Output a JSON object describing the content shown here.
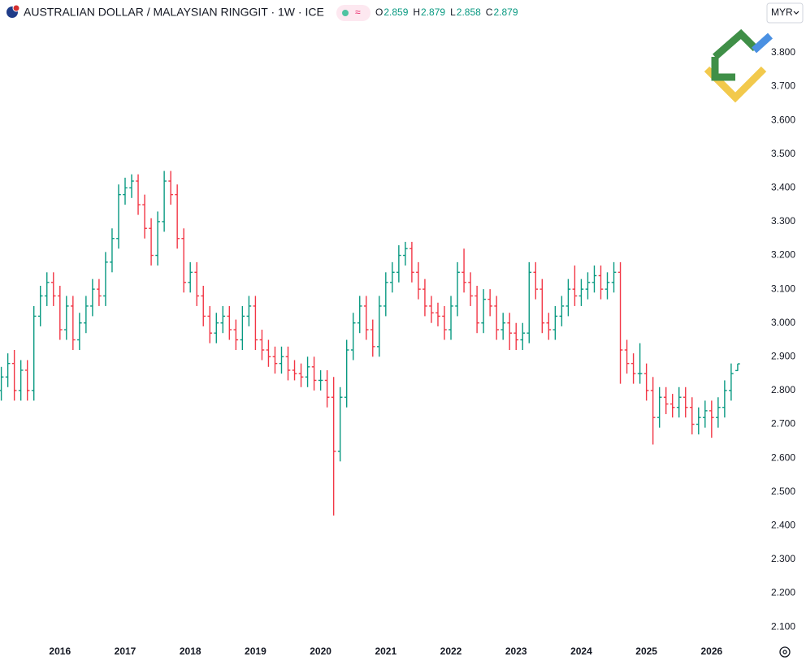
{
  "chart_data": {
    "type": "ohlc",
    "title": "AUSTRALIAN DOLLAR / MALAYSIAN RINGGIT · 1W · ICE",
    "currency": "MYR",
    "legend_labels": [
      "O",
      "H",
      "L",
      "C"
    ],
    "up_color": "#089981",
    "down_color": "#f23645",
    "xlim": [
      2015.08,
      2026.8
    ],
    "xticks": [
      2016,
      2017,
      2018,
      2019,
      2020,
      2021,
      2022,
      2023,
      2024,
      2025,
      2026
    ],
    "ylim": [
      2.057,
      3.884
    ],
    "yticks": [
      {
        "value": 2.1,
        "label": "2.100"
      },
      {
        "value": 2.2,
        "label": "2.200"
      },
      {
        "value": 2.3,
        "label": "2.300"
      },
      {
        "value": 2.4,
        "label": "2.400"
      },
      {
        "value": 2.5,
        "label": "2.500"
      },
      {
        "value": 2.6,
        "label": "2.600"
      },
      {
        "value": 2.7,
        "label": "2.700"
      },
      {
        "value": 2.8,
        "label": "2.800"
      },
      {
        "value": 2.9,
        "label": "2.900"
      },
      {
        "value": 3.0,
        "label": "3.000"
      },
      {
        "value": 3.1,
        "label": "3.100"
      },
      {
        "value": 3.2,
        "label": "3.200"
      },
      {
        "value": 3.3,
        "label": "3.300"
      },
      {
        "value": 3.4,
        "label": "3.400"
      },
      {
        "value": 3.5,
        "label": "3.500"
      },
      {
        "value": 3.6,
        "label": "3.600"
      },
      {
        "value": 3.7,
        "label": "3.700"
      },
      {
        "value": 3.8,
        "label": "3.800"
      }
    ],
    "x": [
      2015.1,
      2015.2,
      2015.3,
      2015.4,
      2015.5,
      2015.6,
      2015.7,
      2015.8,
      2015.9,
      2016.0,
      2016.1,
      2016.2,
      2016.3,
      2016.4,
      2016.5,
      2016.6,
      2016.7,
      2016.8,
      2016.9,
      2017.0,
      2017.1,
      2017.2,
      2017.3,
      2017.4,
      2017.5,
      2017.6,
      2017.7,
      2017.8,
      2017.9,
      2018.0,
      2018.1,
      2018.2,
      2018.3,
      2018.4,
      2018.5,
      2018.6,
      2018.7,
      2018.8,
      2018.9,
      2019.0,
      2019.1,
      2019.2,
      2019.3,
      2019.4,
      2019.5,
      2019.6,
      2019.7,
      2019.8,
      2019.9,
      2020.0,
      2020.1,
      2020.2,
      2020.3,
      2020.4,
      2020.5,
      2020.6,
      2020.7,
      2020.8,
      2020.9,
      2021.0,
      2021.1,
      2021.2,
      2021.3,
      2021.4,
      2021.5,
      2021.6,
      2021.7,
      2021.8,
      2021.9,
      2022.0,
      2022.1,
      2022.2,
      2022.3,
      2022.4,
      2022.5,
      2022.6,
      2022.7,
      2022.8,
      2022.9,
      2023.0,
      2023.1,
      2023.2,
      2023.3,
      2023.4,
      2023.5,
      2023.6,
      2023.7,
      2023.8,
      2023.9,
      2024.0,
      2024.1,
      2024.2,
      2024.3,
      2024.4,
      2024.5,
      2024.6,
      2024.7,
      2024.8,
      2024.9,
      2025.0,
      2025.1,
      2025.2,
      2025.3,
      2025.4,
      2025.5,
      2025.6,
      2025.7,
      2025.8,
      2025.9,
      2026.0,
      2026.1,
      2026.2,
      2026.3,
      2026.4
    ],
    "open": [
      2.8,
      2.84,
      2.88,
      2.8,
      2.86,
      2.8,
      3.02,
      3.08,
      3.12,
      3.08,
      2.98,
      3.05,
      2.95,
      3.0,
      3.05,
      3.1,
      3.08,
      3.18,
      3.25,
      3.38,
      3.4,
      3.42,
      3.35,
      3.28,
      3.2,
      3.3,
      3.42,
      3.38,
      3.25,
      3.12,
      3.15,
      3.08,
      3.02,
      2.97,
      3.0,
      3.02,
      2.98,
      2.95,
      3.02,
      3.05,
      2.95,
      2.92,
      2.9,
      2.88,
      2.9,
      2.86,
      2.85,
      2.84,
      2.87,
      2.83,
      2.83,
      2.78,
      2.62,
      2.78,
      2.92,
      3.0,
      3.05,
      2.98,
      2.93,
      3.05,
      3.12,
      3.15,
      3.2,
      3.22,
      3.15,
      3.1,
      3.05,
      3.03,
      3.02,
      2.98,
      3.05,
      3.15,
      3.12,
      3.08,
      3.0,
      3.07,
      3.05,
      2.98,
      3.0,
      2.97,
      2.95,
      2.97,
      3.15,
      3.1,
      3.0,
      2.98,
      3.02,
      3.05,
      3.1,
      3.08,
      3.1,
      3.12,
      3.14,
      3.1,
      3.12,
      3.15,
      2.92,
      2.88,
      2.85,
      2.85,
      2.8,
      2.72,
      2.78,
      2.76,
      2.75,
      2.78,
      2.75,
      2.7,
      2.72,
      2.74,
      2.72,
      2.75,
      2.8,
      2.859
    ],
    "high": [
      2.87,
      2.91,
      2.92,
      2.89,
      2.89,
      3.05,
      3.11,
      3.15,
      3.15,
      3.11,
      3.08,
      3.08,
      3.03,
      3.08,
      3.13,
      3.13,
      3.21,
      3.28,
      3.41,
      3.43,
      3.44,
      3.44,
      3.38,
      3.31,
      3.33,
      3.45,
      3.45,
      3.41,
      3.28,
      3.18,
      3.18,
      3.11,
      3.05,
      3.03,
      3.05,
      3.05,
      3.01,
      3.05,
      3.08,
      3.08,
      2.98,
      2.95,
      2.93,
      2.93,
      2.93,
      2.89,
      2.88,
      2.9,
      2.9,
      2.86,
      2.86,
      2.84,
      2.81,
      2.95,
      3.03,
      3.08,
      3.08,
      3.01,
      3.08,
      3.15,
      3.18,
      3.23,
      3.24,
      3.24,
      3.18,
      3.13,
      3.08,
      3.06,
      3.05,
      3.08,
      3.18,
      3.22,
      3.15,
      3.11,
      3.1,
      3.1,
      3.08,
      3.03,
      3.03,
      3.0,
      3.0,
      3.18,
      3.18,
      3.13,
      3.03,
      3.05,
      3.08,
      3.13,
      3.17,
      3.13,
      3.15,
      3.17,
      3.17,
      3.15,
      3.18,
      3.18,
      2.95,
      2.91,
      2.94,
      2.88,
      2.84,
      2.81,
      2.81,
      2.79,
      2.81,
      2.81,
      2.78,
      2.75,
      2.77,
      2.77,
      2.78,
      2.83,
      2.88,
      2.879
    ],
    "low": [
      2.77,
      2.81,
      2.77,
      2.77,
      2.77,
      2.77,
      2.99,
      3.05,
      3.05,
      2.95,
      2.95,
      2.92,
      2.92,
      2.97,
      3.02,
      3.05,
      3.05,
      3.15,
      3.22,
      3.35,
      3.37,
      3.32,
      3.25,
      3.17,
      3.17,
      3.27,
      3.35,
      3.22,
      3.09,
      3.09,
      3.05,
      2.99,
      2.94,
      2.94,
      2.97,
      2.95,
      2.92,
      2.92,
      2.99,
      2.92,
      2.89,
      2.87,
      2.85,
      2.85,
      2.83,
      2.83,
      2.81,
      2.81,
      2.8,
      2.8,
      2.75,
      2.43,
      2.59,
      2.75,
      2.89,
      2.97,
      2.95,
      2.9,
      2.9,
      3.02,
      3.09,
      3.12,
      3.17,
      3.12,
      3.07,
      3.02,
      3.0,
      2.99,
      2.95,
      2.95,
      3.02,
      3.09,
      3.05,
      2.97,
      2.97,
      3.02,
      2.95,
      2.95,
      2.92,
      2.92,
      2.92,
      2.94,
      3.07,
      2.97,
      2.95,
      2.95,
      2.99,
      3.02,
      3.05,
      3.05,
      3.07,
      3.09,
      3.07,
      3.07,
      3.09,
      2.82,
      2.85,
      2.82,
      2.82,
      2.77,
      2.64,
      2.69,
      2.73,
      2.72,
      2.72,
      2.72,
      2.67,
      2.67,
      2.69,
      2.66,
      2.69,
      2.72,
      2.77,
      2.858
    ],
    "close": [
      2.84,
      2.88,
      2.8,
      2.86,
      2.8,
      3.02,
      3.08,
      3.12,
      3.08,
      2.98,
      3.05,
      2.95,
      3.0,
      3.05,
      3.1,
      3.08,
      3.18,
      3.25,
      3.38,
      3.4,
      3.42,
      3.35,
      3.28,
      3.2,
      3.3,
      3.42,
      3.38,
      3.25,
      3.12,
      3.15,
      3.08,
      3.02,
      2.97,
      3.0,
      3.02,
      2.98,
      2.95,
      3.02,
      3.05,
      2.95,
      2.92,
      2.9,
      2.88,
      2.9,
      2.86,
      2.85,
      2.84,
      2.87,
      2.83,
      2.83,
      2.78,
      2.62,
      2.78,
      2.92,
      3.0,
      3.05,
      2.98,
      2.93,
      3.05,
      3.12,
      3.15,
      3.2,
      3.22,
      3.15,
      3.1,
      3.05,
      3.03,
      3.02,
      2.98,
      3.05,
      3.15,
      3.12,
      3.08,
      3.0,
      3.07,
      3.05,
      2.98,
      3.0,
      2.97,
      2.95,
      2.97,
      3.15,
      3.1,
      3.0,
      2.98,
      3.02,
      3.05,
      3.1,
      3.08,
      3.1,
      3.12,
      3.14,
      3.1,
      3.12,
      3.15,
      2.92,
      2.88,
      2.85,
      2.85,
      2.8,
      2.72,
      2.78,
      2.76,
      2.75,
      2.78,
      2.75,
      2.7,
      2.72,
      2.74,
      2.72,
      2.75,
      2.8,
      2.85,
      2.879
    ]
  }
}
